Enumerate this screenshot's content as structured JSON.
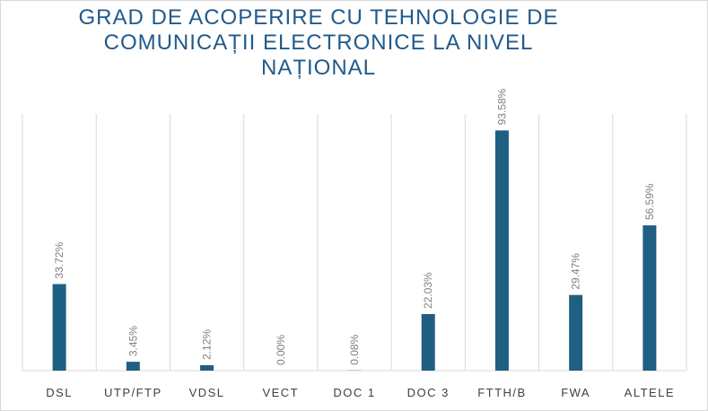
{
  "chart_data": {
    "type": "bar",
    "title_lines": [
      "GRAD DE ACOPERIRE CU TEHNOLOGIE DE",
      "COMUNICAȚII ELECTRONICE LA NIVEL",
      "NAȚIONAL"
    ],
    "categories": [
      "DSL",
      "UTP/FTP",
      "VDSL",
      "VECT",
      "DOC 1",
      "DOC 3",
      "FTTH/B",
      "FWA",
      "ALTELE"
    ],
    "values": [
      33.72,
      3.45,
      2.12,
      0.0,
      0.08,
      22.03,
      93.58,
      29.47,
      56.59
    ],
    "data_labels": [
      "33.72%",
      "3.45%",
      "2.12%",
      "0.00%",
      "0.08%",
      "22.03%",
      "93.58%",
      "29.47%",
      "56.59%"
    ],
    "ylim": [
      0,
      100
    ],
    "grid": "vertical separators",
    "bar_color": "#1f5f82",
    "title_color": "#215a8c"
  }
}
